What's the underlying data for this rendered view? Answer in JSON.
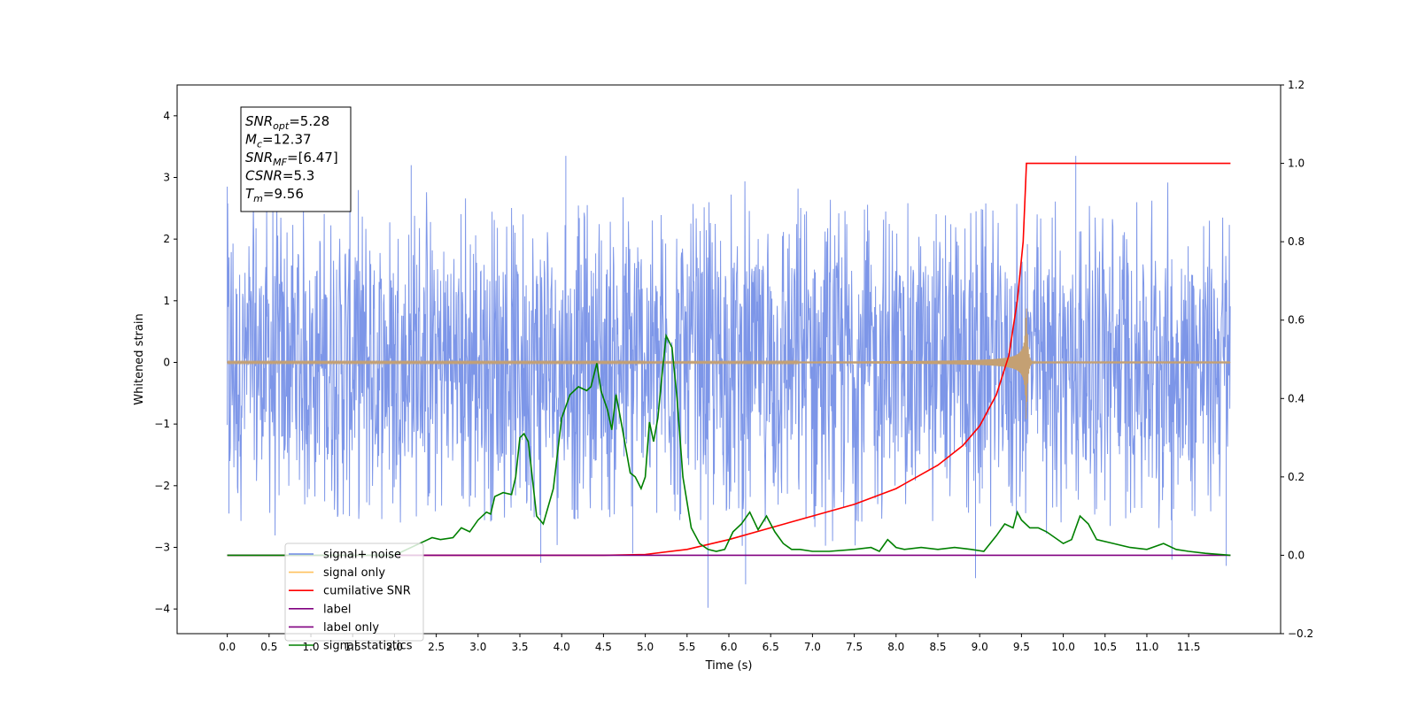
{
  "chart_data": {
    "type": "line",
    "xlabel": "Time (s)",
    "ylabel": "Whitened strain",
    "xlim": [
      -0.6,
      12.6
    ],
    "ylim": [
      -4.4,
      4.5
    ],
    "y2lim": [
      -0.2,
      1.2
    ],
    "x_ticks": [
      0.0,
      0.5,
      1.0,
      1.5,
      2.0,
      2.5,
      3.0,
      3.5,
      4.0,
      4.5,
      5.0,
      5.5,
      6.0,
      6.5,
      7.0,
      7.5,
      8.0,
      8.5,
      9.0,
      9.5,
      10.0,
      10.5,
      11.0,
      11.5
    ],
    "x_tick_labels": [
      "0.0",
      "0.5",
      "1.0",
      "1.5",
      "2.0",
      "2.5",
      "3.0",
      "3.5",
      "4.0",
      "4.5",
      "5.0",
      "5.5",
      "6.0",
      "6.5",
      "7.0",
      "7.5",
      "8.0",
      "8.5",
      "9.0",
      "9.5",
      "10.0",
      "10.5",
      "11.0",
      "11.5"
    ],
    "y_ticks": [
      -4,
      -3,
      -2,
      -1,
      0,
      1,
      2,
      3,
      4
    ],
    "y_tick_labels": [
      "−4",
      "−3",
      "−2",
      "−1",
      "0",
      "1",
      "2",
      "3",
      "4"
    ],
    "y2_ticks": [
      -0.2,
      0.0,
      0.2,
      0.4,
      0.6,
      0.8,
      1.0,
      1.2
    ],
    "y2_tick_labels": [
      "−0.2",
      "0.0",
      "0.2",
      "0.4",
      "0.6",
      "0.8",
      "1.0",
      "1.2"
    ],
    "info_lines": [
      {
        "var": "SNR",
        "sub": "opt",
        "value": "=5.28"
      },
      {
        "var": "M",
        "sub": "c",
        "value": "=12.37"
      },
      {
        "var": "SNR",
        "sub": "MF",
        "value": "=[6.47]"
      },
      {
        "var": "CSNR",
        "sub": "",
        "value": "=5.3"
      },
      {
        "var": "T",
        "sub": "m",
        "value": "=9.56"
      }
    ],
    "legend": {
      "location": "lower-left",
      "entries": [
        {
          "label": "signal+ noise",
          "color": "#6f8be5"
        },
        {
          "label": "signal only",
          "color": "#ffc15e"
        },
        {
          "label": "cumilative SNR",
          "color": "#ff0000"
        },
        {
          "label": "label",
          "color": "#800080"
        },
        {
          "label": "label only",
          "color": "#800080"
        },
        {
          "label": "signal statistics",
          "color": "#008000"
        }
      ]
    },
    "series": [
      {
        "name": "signal+ noise",
        "axis": "left",
        "color": "#6f8be5",
        "style": "dense-noise",
        "x_range": [
          0.0,
          12.0
        ],
        "band": [
          -1.6,
          1.6
        ],
        "peak_range": [
          -2.6,
          2.6
        ],
        "extreme_points": [
          {
            "x": 0.0,
            "y": 2.85
          },
          {
            "x": 0.02,
            "y": -2.45
          },
          {
            "x": 2.2,
            "y": 3.2
          },
          {
            "x": 4.05,
            "y": 3.35
          },
          {
            "x": 5.75,
            "y": -3.98
          },
          {
            "x": 6.2,
            "y": -3.6
          },
          {
            "x": 10.15,
            "y": 3.35
          },
          {
            "x": 8.95,
            "y": -3.5
          },
          {
            "x": 11.95,
            "y": -3.3
          },
          {
            "x": 11.3,
            "y": -3.2
          },
          {
            "x": 4.85,
            "y": -3.1
          },
          {
            "x": 3.75,
            "y": -3.25
          }
        ]
      },
      {
        "name": "signal only",
        "axis": "left",
        "color": "#ffc15e",
        "style": "chirp",
        "merger_time": 9.56,
        "start_x": 0.0,
        "end_x": 12.0,
        "peak_amplitude": 0.92
      },
      {
        "name": "cumilative SNR",
        "axis": "right",
        "color": "#ff0000",
        "x": [
          0.0,
          4.5,
          5.0,
          5.5,
          6.0,
          6.5,
          7.0,
          7.5,
          8.0,
          8.5,
          8.8,
          9.0,
          9.2,
          9.35,
          9.45,
          9.52,
          9.55,
          9.56,
          12.0
        ],
        "y": [
          0.0,
          0.0,
          0.002,
          0.015,
          0.04,
          0.07,
          0.1,
          0.13,
          0.17,
          0.23,
          0.28,
          0.33,
          0.41,
          0.51,
          0.65,
          0.8,
          0.95,
          1.0,
          1.0
        ]
      },
      {
        "name": "label",
        "axis": "right",
        "color": "#800080",
        "x": [
          0.0,
          12.0
        ],
        "y": [
          0.0,
          0.0
        ]
      },
      {
        "name": "signal statistics",
        "axis": "right",
        "color": "#008000",
        "x": [
          0.0,
          0.5,
          1.0,
          1.5,
          2.0,
          2.4,
          2.45,
          2.55,
          2.7,
          2.8,
          2.9,
          3.0,
          3.1,
          3.15,
          3.2,
          3.3,
          3.4,
          3.45,
          3.5,
          3.55,
          3.6,
          3.7,
          3.78,
          3.9,
          4.0,
          4.1,
          4.2,
          4.3,
          4.35,
          4.42,
          4.47,
          4.55,
          4.6,
          4.65,
          4.72,
          4.82,
          4.88,
          4.95,
          5.0,
          5.05,
          5.1,
          5.15,
          5.2,
          5.25,
          5.32,
          5.38,
          5.45,
          5.55,
          5.65,
          5.75,
          5.85,
          5.95,
          6.05,
          6.15,
          6.25,
          6.35,
          6.45,
          6.55,
          6.65,
          6.75,
          6.85,
          7.0,
          7.2,
          7.5,
          7.7,
          7.8,
          7.85,
          7.9,
          7.95,
          8.0,
          8.1,
          8.3,
          8.5,
          8.7,
          8.9,
          9.05,
          9.2,
          9.3,
          9.4,
          9.45,
          9.5,
          9.6,
          9.7,
          9.8,
          10.0,
          10.1,
          10.2,
          10.3,
          10.4,
          10.6,
          10.8,
          11.0,
          11.2,
          11.35,
          11.5,
          11.7,
          12.0
        ],
        "y": [
          0.0,
          0.0,
          0.0,
          0.0,
          0.0,
          0.04,
          0.045,
          0.04,
          0.045,
          0.07,
          0.06,
          0.09,
          0.11,
          0.105,
          0.15,
          0.16,
          0.155,
          0.2,
          0.3,
          0.31,
          0.29,
          0.1,
          0.08,
          0.17,
          0.35,
          0.41,
          0.43,
          0.42,
          0.43,
          0.49,
          0.42,
          0.37,
          0.32,
          0.41,
          0.33,
          0.21,
          0.2,
          0.17,
          0.2,
          0.34,
          0.29,
          0.35,
          0.46,
          0.56,
          0.53,
          0.4,
          0.2,
          0.07,
          0.03,
          0.015,
          0.01,
          0.015,
          0.06,
          0.08,
          0.11,
          0.065,
          0.1,
          0.06,
          0.03,
          0.015,
          0.015,
          0.01,
          0.01,
          0.015,
          0.02,
          0.01,
          0.025,
          0.04,
          0.03,
          0.02,
          0.015,
          0.02,
          0.015,
          0.02,
          0.015,
          0.01,
          0.05,
          0.08,
          0.07,
          0.11,
          0.09,
          0.07,
          0.07,
          0.06,
          0.03,
          0.04,
          0.1,
          0.08,
          0.04,
          0.03,
          0.02,
          0.015,
          0.03,
          0.015,
          0.01,
          0.005,
          0.0
        ]
      }
    ]
  }
}
